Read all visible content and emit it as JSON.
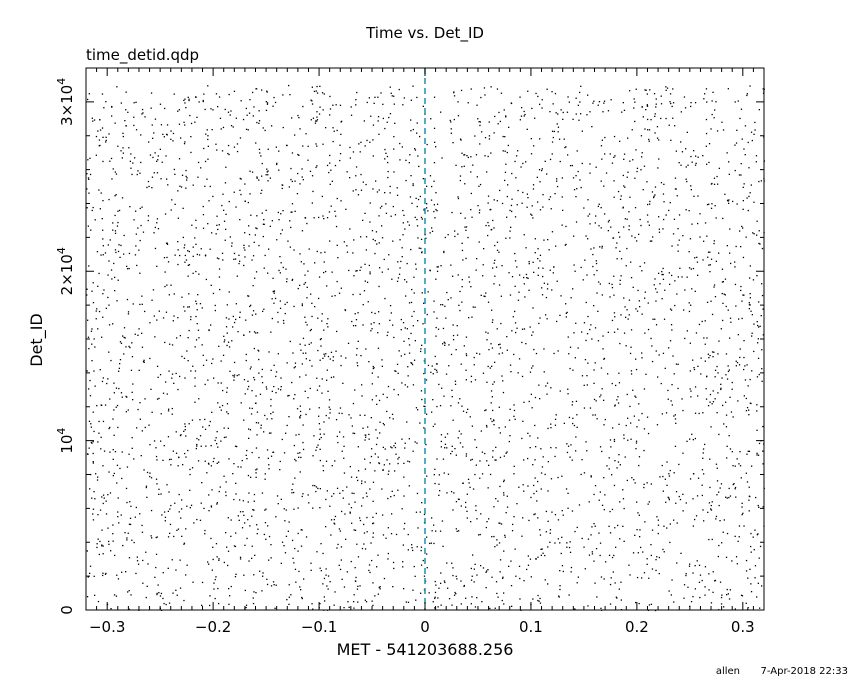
{
  "chart_data": {
    "type": "scatter",
    "title": "Time vs. Det_ID",
    "subtitle": "time_detid.qdp",
    "xlabel": "MET - 541203688.256",
    "ylabel": "Det_ID",
    "xlim": [
      -0.32,
      0.32
    ],
    "ylim": [
      0,
      32000
    ],
    "x_ticks": [
      -0.3,
      -0.2,
      -0.1,
      0,
      0.1,
      0.2,
      0.3
    ],
    "x_tick_labels": [
      "−0.3",
      "−0.2",
      "−0.1",
      "0",
      "0.1",
      "0.2",
      "0.3"
    ],
    "y_ticks": [
      {
        "value": 0,
        "mantissa": "0",
        "exponent": ""
      },
      {
        "value": 10000,
        "mantissa": "10",
        "exponent": "4"
      },
      {
        "value": 20000,
        "mantissa": "2×10",
        "exponent": "4"
      },
      {
        "value": 30000,
        "mantissa": "3×10",
        "exponent": "4"
      }
    ],
    "reference_line": {
      "x": 0,
      "style": "dashed",
      "color": "#1f8fa8"
    },
    "point_color": "#000000",
    "grid": false,
    "legend": "none",
    "series": [
      {
        "distribution": "dense uniform scatter of individual events",
        "x_range": [
          -0.32,
          0.32
        ],
        "y_range": [
          0,
          31000
        ],
        "approx_count": 4200
      }
    ]
  },
  "footer": {
    "user": "allen",
    "timestamp": "7-Apr-2018 22:33"
  }
}
